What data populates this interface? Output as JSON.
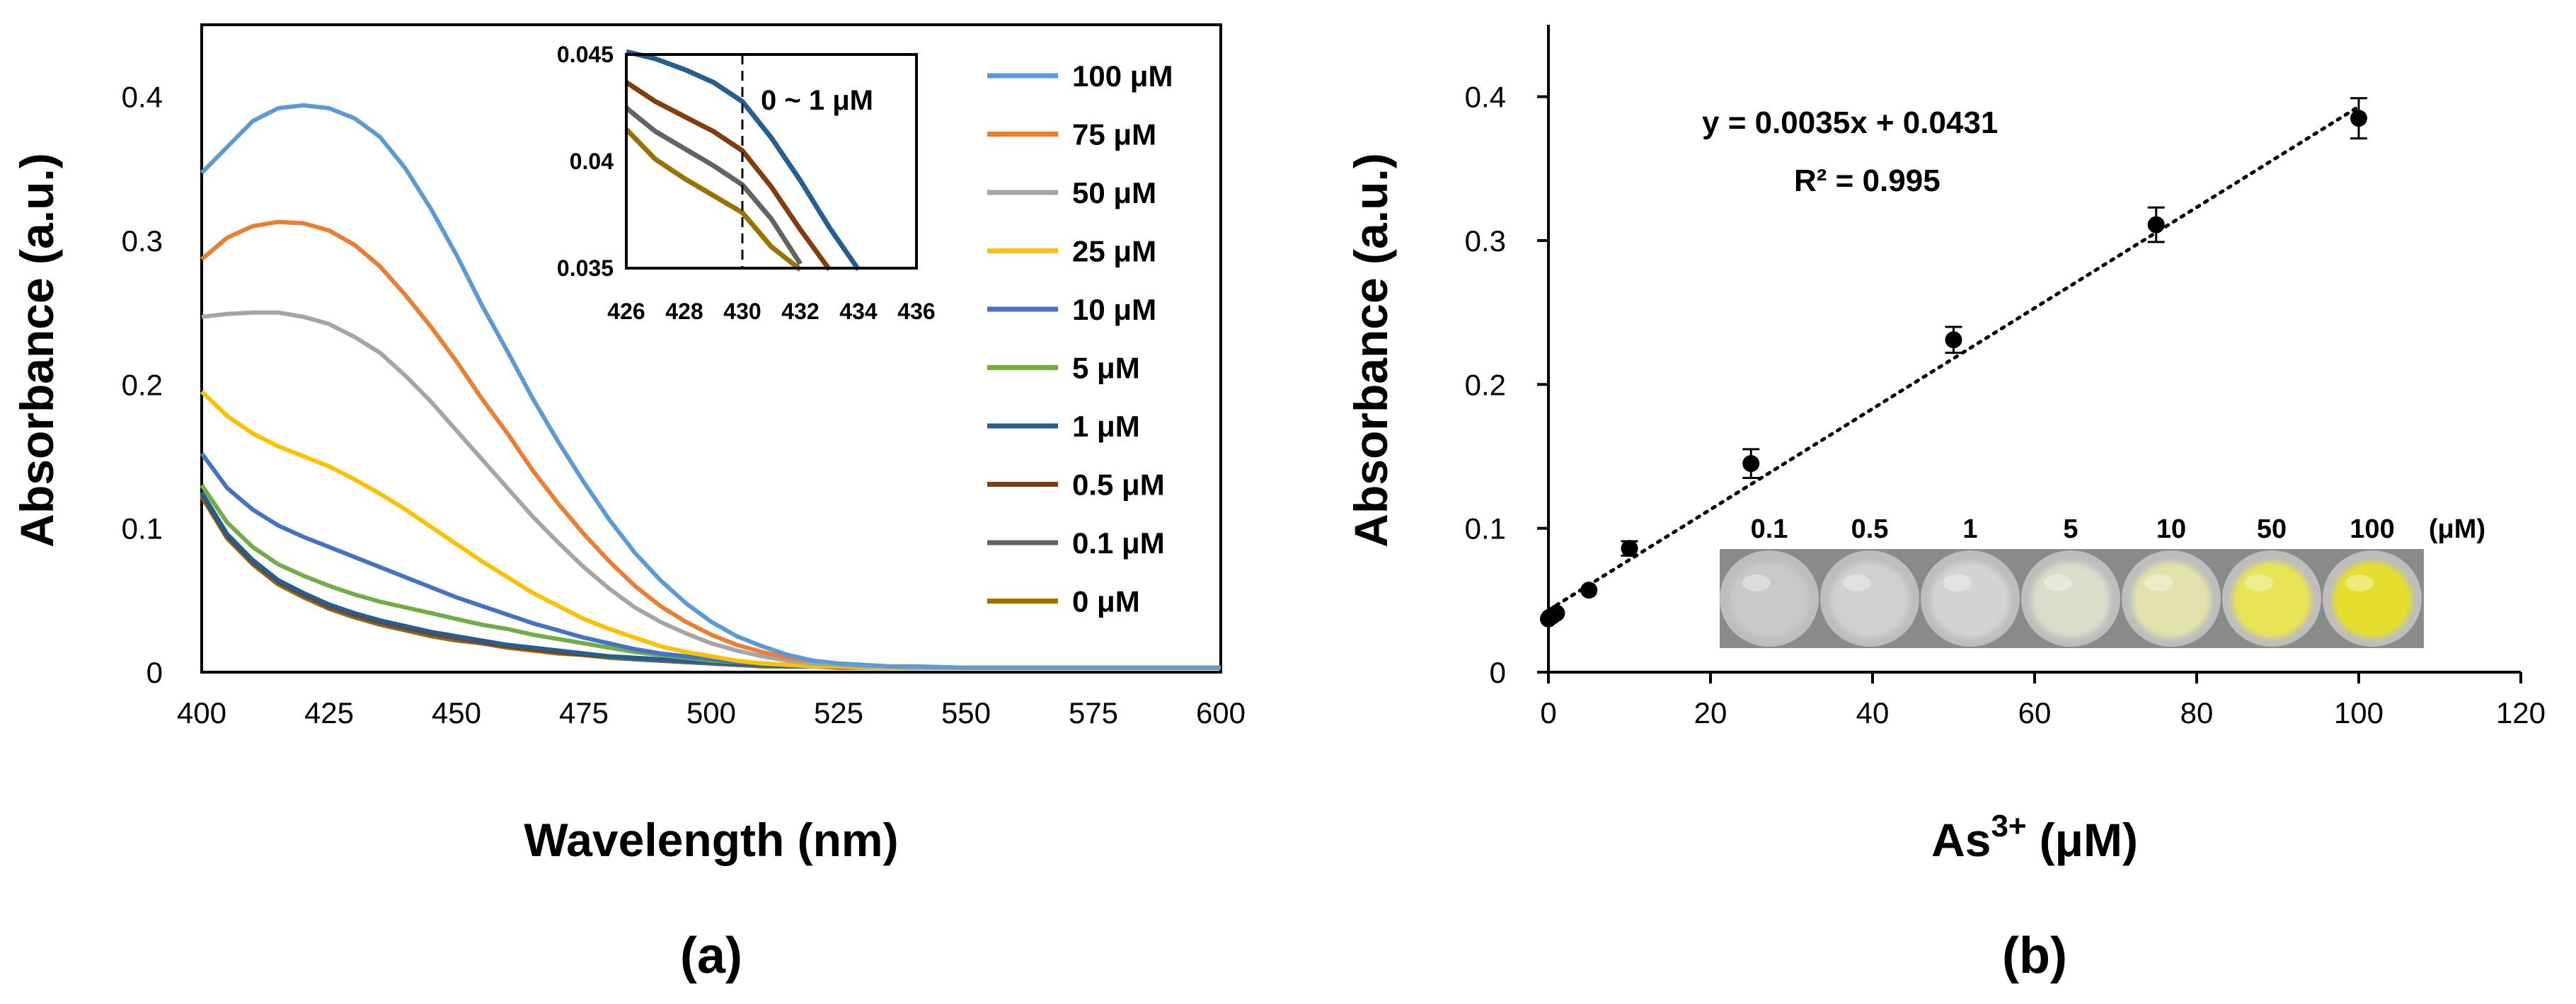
{
  "figure": {
    "panel_a_label": "(a)",
    "panel_b_label": "(b)"
  },
  "chart_data": [
    {
      "type": "line",
      "panel": "(a)",
      "title": "",
      "xlabel": "Wavelength (nm)",
      "ylabel": "Absorbance (a.u.)",
      "xlim": [
        400,
        600
      ],
      "ylim": [
        0,
        0.45
      ],
      "xticks": [
        "400",
        "425",
        "450",
        "475",
        "500",
        "525",
        "550",
        "575",
        "600"
      ],
      "yticks": [
        "0",
        "0.1",
        "0.2",
        "0.3",
        "0.4"
      ],
      "grid": false,
      "legend_position": "right",
      "x": [
        400,
        405,
        410,
        415,
        420,
        425,
        430,
        435,
        440,
        445,
        450,
        455,
        460,
        465,
        470,
        475,
        480,
        485,
        490,
        495,
        500,
        505,
        510,
        515,
        520,
        525,
        530,
        535,
        540,
        550,
        560,
        570,
        580,
        590,
        600
      ],
      "series": [
        {
          "name": "100 μM",
          "color": "#5b9bd5",
          "values": [
            0.347,
            0.365,
            0.383,
            0.392,
            0.394,
            0.392,
            0.385,
            0.372,
            0.35,
            0.322,
            0.29,
            0.255,
            0.223,
            0.19,
            0.16,
            0.132,
            0.106,
            0.083,
            0.064,
            0.048,
            0.035,
            0.025,
            0.018,
            0.012,
            0.008,
            0.006,
            0.005,
            0.004,
            0.004,
            0.003,
            0.003,
            0.003,
            0.003,
            0.003,
            0.003
          ]
        },
        {
          "name": "75 μM",
          "color": "#ed7d31",
          "values": [
            0.287,
            0.302,
            0.31,
            0.313,
            0.312,
            0.307,
            0.297,
            0.282,
            0.262,
            0.24,
            0.216,
            0.19,
            0.166,
            0.14,
            0.117,
            0.096,
            0.077,
            0.06,
            0.046,
            0.035,
            0.026,
            0.019,
            0.014,
            0.01,
            0.008,
            0.006,
            0.005,
            0.004,
            0.004,
            0.003,
            0.003,
            0.003,
            0.003,
            0.003,
            0.003
          ]
        },
        {
          "name": "50 μM",
          "color": "#a5a5a5",
          "values": [
            0.247,
            0.249,
            0.25,
            0.25,
            0.247,
            0.242,
            0.233,
            0.222,
            0.206,
            0.188,
            0.168,
            0.148,
            0.128,
            0.108,
            0.09,
            0.073,
            0.058,
            0.045,
            0.035,
            0.027,
            0.02,
            0.015,
            0.011,
            0.008,
            0.006,
            0.005,
            0.004,
            0.004,
            0.003,
            0.003,
            0.003,
            0.003,
            0.003,
            0.003,
            0.003
          ]
        },
        {
          "name": "25 μM",
          "color": "#ffc000",
          "values": [
            0.195,
            0.178,
            0.166,
            0.157,
            0.15,
            0.143,
            0.134,
            0.124,
            0.113,
            0.101,
            0.089,
            0.077,
            0.066,
            0.055,
            0.046,
            0.037,
            0.03,
            0.024,
            0.018,
            0.014,
            0.011,
            0.008,
            0.006,
            0.005,
            0.004,
            0.004,
            0.003,
            0.003,
            0.003,
            0.003,
            0.003,
            0.003,
            0.003,
            0.003,
            0.003
          ]
        },
        {
          "name": "10 μM",
          "color": "#4472c4",
          "values": [
            0.152,
            0.128,
            0.113,
            0.102,
            0.094,
            0.087,
            0.08,
            0.073,
            0.066,
            0.059,
            0.052,
            0.046,
            0.04,
            0.034,
            0.029,
            0.024,
            0.02,
            0.016,
            0.013,
            0.011,
            0.009,
            0.007,
            0.006,
            0.005,
            0.004,
            0.004,
            0.003,
            0.003,
            0.003,
            0.003,
            0.003,
            0.003,
            0.003,
            0.003,
            0.003
          ]
        },
        {
          "name": "5 μM",
          "color": "#70ad47",
          "values": [
            0.13,
            0.104,
            0.087,
            0.075,
            0.067,
            0.06,
            0.054,
            0.049,
            0.045,
            0.041,
            0.037,
            0.033,
            0.03,
            0.026,
            0.023,
            0.02,
            0.017,
            0.014,
            0.012,
            0.01,
            0.008,
            0.007,
            0.006,
            0.005,
            0.004,
            0.004,
            0.003,
            0.003,
            0.003,
            0.003,
            0.003,
            0.003,
            0.003,
            0.003,
            0.003
          ]
        },
        {
          "name": "1 μM",
          "color": "#255e91",
          "values": [
            0.125,
            0.096,
            0.078,
            0.064,
            0.055,
            0.047,
            0.041,
            0.036,
            0.032,
            0.028,
            0.025,
            0.022,
            0.019,
            0.017,
            0.015,
            0.013,
            0.011,
            0.01,
            0.009,
            0.008,
            0.007,
            0.006,
            0.005,
            0.004,
            0.004,
            0.004,
            0.003,
            0.003,
            0.003,
            0.003,
            0.003,
            0.003,
            0.003,
            0.003,
            0.003
          ]
        },
        {
          "name": "0.5 μM",
          "color": "#843c0c",
          "values": [
            0.124,
            0.095,
            0.077,
            0.063,
            0.054,
            0.046,
            0.04,
            0.035,
            0.031,
            0.027,
            0.024,
            0.021,
            0.018,
            0.016,
            0.014,
            0.012,
            0.011,
            0.01,
            0.009,
            0.008,
            0.007,
            0.006,
            0.005,
            0.004,
            0.004,
            0.004,
            0.003,
            0.003,
            0.003,
            0.003,
            0.003,
            0.003,
            0.003,
            0.003,
            0.003
          ]
        },
        {
          "name": "0.1 μM",
          "color": "#636363",
          "values": [
            0.123,
            0.094,
            0.076,
            0.062,
            0.053,
            0.045,
            0.039,
            0.034,
            0.03,
            0.026,
            0.023,
            0.02,
            0.018,
            0.016,
            0.014,
            0.012,
            0.011,
            0.009,
            0.008,
            0.007,
            0.006,
            0.005,
            0.005,
            0.004,
            0.004,
            0.004,
            0.003,
            0.003,
            0.003,
            0.003,
            0.003,
            0.003,
            0.003,
            0.003,
            0.003
          ]
        },
        {
          "name": "0 μM",
          "color": "#997300",
          "values": [
            0.122,
            0.093,
            0.075,
            0.061,
            0.052,
            0.044,
            0.038,
            0.033,
            0.029,
            0.025,
            0.022,
            0.02,
            0.017,
            0.015,
            0.013,
            0.012,
            0.01,
            0.009,
            0.008,
            0.007,
            0.006,
            0.005,
            0.004,
            0.004,
            0.004,
            0.003,
            0.003,
            0.003,
            0.003,
            0.003,
            0.003,
            0.003,
            0.003,
            0.003,
            0.003
          ]
        }
      ],
      "inset": {
        "xlim": [
          426,
          436
        ],
        "ylim": [
          0.035,
          0.045
        ],
        "xticks": [
          "426",
          "428",
          "430",
          "432",
          "434",
          "436"
        ],
        "yticks": [
          "0.035",
          "0.04",
          "0.045"
        ],
        "marker_x": 430,
        "annotation": "0 ~ 1 μM",
        "series": [
          {
            "name": "1 μM",
            "color": "#255e91",
            "x": [
              426,
              427,
              428,
              429,
              430,
              431,
              432,
              433,
              434
            ],
            "values": [
              0.0452,
              0.0448,
              0.0443,
              0.0437,
              0.0428,
              0.0411,
              0.0391,
              0.0369,
              0.0348
            ]
          },
          {
            "name": "0.5 μM",
            "color": "#843c0c",
            "x": [
              426,
              427,
              428,
              429,
              430,
              431,
              432,
              433
            ],
            "values": [
              0.0437,
              0.0428,
              0.0421,
              0.0414,
              0.0405,
              0.0388,
              0.0368,
              0.0348
            ]
          },
          {
            "name": "0.1 μM",
            "color": "#636363",
            "x": [
              426,
              427,
              428,
              429,
              430,
              431,
              432
            ],
            "values": [
              0.0425,
              0.0414,
              0.0406,
              0.0398,
              0.0389,
              0.0373,
              0.0352
            ]
          },
          {
            "name": "0 μM",
            "color": "#997300",
            "x": [
              426,
              427,
              428,
              429,
              430,
              431,
              432
            ],
            "values": [
              0.0415,
              0.0401,
              0.0392,
              0.0384,
              0.0376,
              0.036,
              0.0341
            ]
          }
        ]
      }
    },
    {
      "type": "scatter",
      "panel": "(b)",
      "title": "",
      "xlabel_main": "As",
      "xlabel_sup": "3+",
      "xlabel_unit": "(μM)",
      "ylabel": "Absorbance (a.u.)",
      "xlim": [
        0,
        120
      ],
      "ylim": [
        0,
        0.45
      ],
      "xticks": [
        "0",
        "20",
        "40",
        "60",
        "80",
        "100",
        "120"
      ],
      "yticks": [
        "0",
        "0.1",
        "0.2",
        "0.3",
        "0.4"
      ],
      "grid": false,
      "x": [
        0,
        0.1,
        0.5,
        1,
        5,
        10,
        25,
        50,
        75,
        100
      ],
      "values": [
        0.037,
        0.038,
        0.039,
        0.041,
        0.057,
        0.086,
        0.145,
        0.231,
        0.311,
        0.385
      ],
      "errors": [
        0.002,
        0.002,
        0.002,
        0.002,
        0.003,
        0.005,
        0.01,
        0.009,
        0.012,
        0.014
      ],
      "marker_color": "#000000",
      "fit": {
        "slope": 0.0035,
        "intercept": 0.0431,
        "x_range": [
          0,
          100
        ]
      },
      "equation": "y = 0.0035x + 0.0431",
      "r_squared": "R² = 0.995",
      "wells": {
        "labels": [
          "0.1",
          "0.5",
          "1",
          "5",
          "10",
          "50",
          "100"
        ],
        "unit": "(μM)",
        "colors": [
          "#c9c9c9",
          "#d0d0cf",
          "#d4d4d2",
          "#dcdcca",
          "#e2e2ad",
          "#e8e455",
          "#e4df2e"
        ]
      }
    }
  ]
}
